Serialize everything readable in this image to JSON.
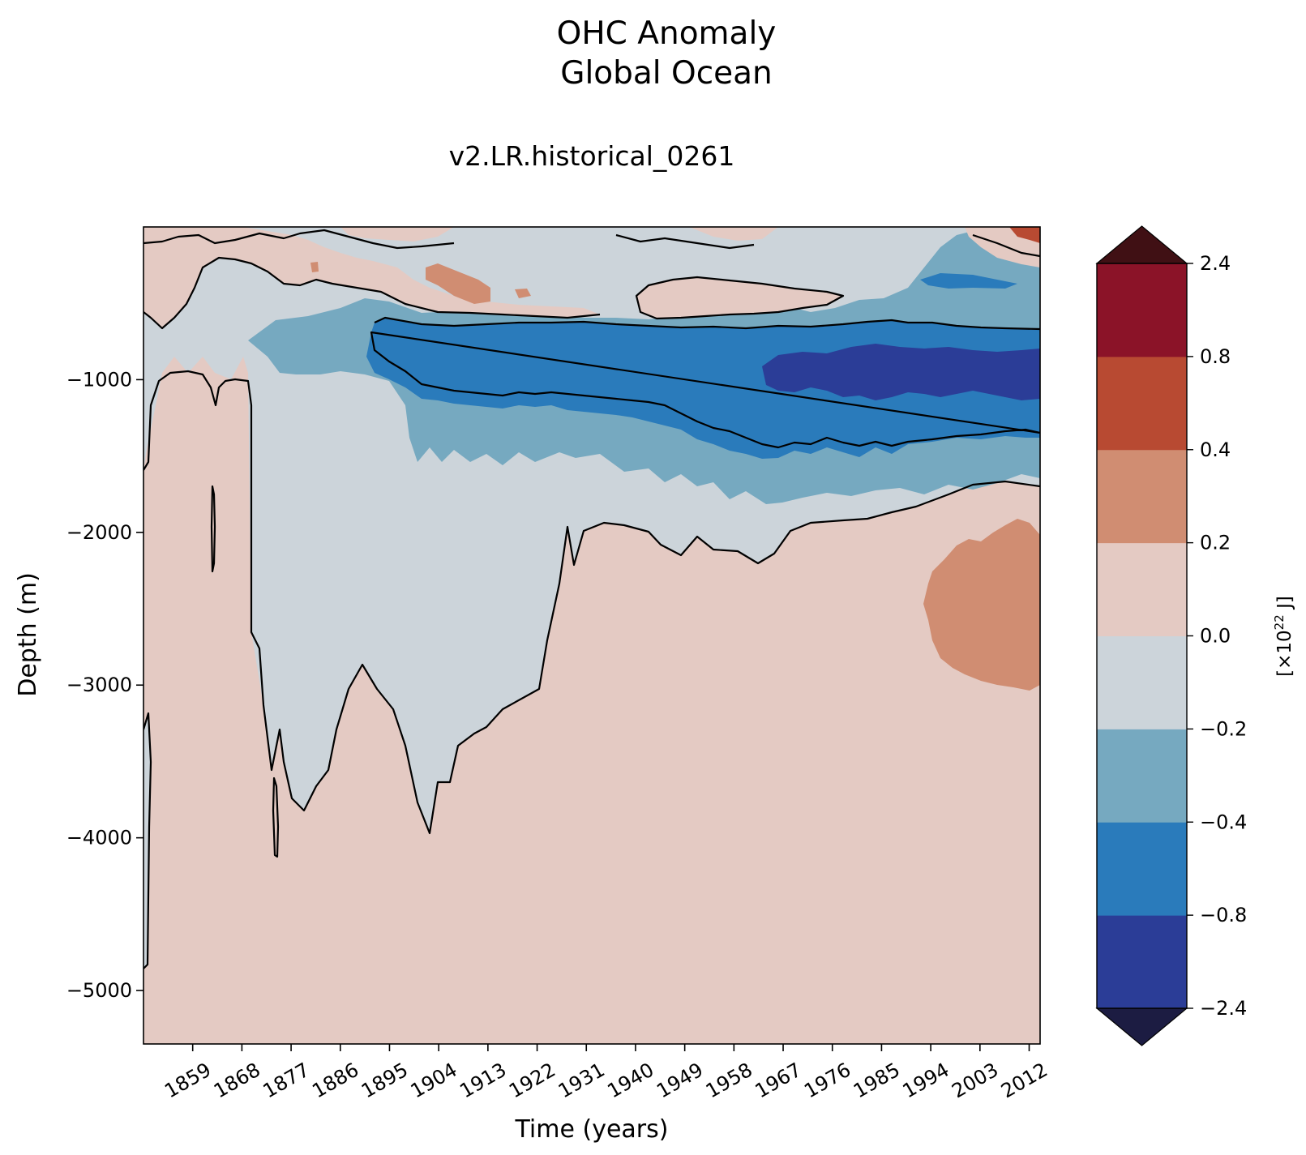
{
  "chart_data": {
    "type": "contourf",
    "title": "OHC Anomaly",
    "subtitle": "Global Ocean",
    "run_name": "v2.LR.historical_0261",
    "xlabel": "Time (years)",
    "ylabel": "Depth (m)",
    "xlim": [
      1850,
      2014
    ],
    "ylim": [
      -5350,
      0
    ],
    "x_ticks": [
      1859,
      1868,
      1877,
      1886,
      1895,
      1904,
      1913,
      1922,
      1931,
      1940,
      1949,
      1958,
      1967,
      1976,
      1985,
      1994,
      2003,
      2012
    ],
    "y_ticks": [
      -1000,
      -2000,
      -3000,
      -4000,
      -5000
    ],
    "y_tick_labels": [
      "−1000",
      "−2000",
      "−3000",
      "−4000",
      "−5000"
    ],
    "colorbar": {
      "label_prefix": "[×10",
      "label_exp": "22",
      "label_suffix": " J]",
      "levels": [
        -2.4,
        -0.8,
        -0.4,
        -0.2,
        0.0,
        0.2,
        0.4,
        0.8,
        2.4
      ],
      "tick_labels": [
        "−2.4",
        "−0.8",
        "−0.4",
        "−0.2",
        "0.0",
        "0.2",
        "0.4",
        "0.8",
        "2.4"
      ],
      "colors": [
        "#2b3d97",
        "#2a7bbb",
        "#76a9c0",
        "#ccd4da",
        "#e4cac3",
        "#d08d72",
        "#b84a32",
        "#8b1328"
      ],
      "extend_min_color": "#1c1c42",
      "extend_max_color": "#401014"
    },
    "regions": [
      {
        "name": "deep positive anomaly",
        "x_range": [
          1850,
          2014
        ],
        "depth_range": [
          -5350,
          -1700
        ],
        "value_range": [
          0.0,
          0.2
        ]
      },
      {
        "name": "early-period negative column",
        "x_range": [
          1869,
          1929
        ],
        "depth_range": [
          -4000,
          -400
        ],
        "value_range": [
          -0.2,
          0.0
        ]
      },
      {
        "name": "mid-depth cooling core",
        "x_range": [
          1892,
          2014
        ],
        "depth_range": [
          -1450,
          -600
        ],
        "value_range": [
          -0.8,
          -0.4
        ]
      },
      {
        "name": "strongest cooling",
        "x_range": [
          1962,
          2014
        ],
        "depth_range": [
          -1200,
          -800
        ],
        "value_range": [
          -2.4,
          -0.8
        ]
      },
      {
        "name": "abyssal warm patch",
        "x_range": [
          1991,
          2014
        ],
        "depth_range": [
          -3000,
          -1950
        ],
        "value_range": [
          0.2,
          0.4
        ]
      },
      {
        "name": "upper-ocean warm patches",
        "x_range": [
          1850,
          1977
        ],
        "depth_range": [
          -600,
          0
        ],
        "value_range": [
          0.0,
          0.4
        ]
      },
      {
        "name": "surface warming recent",
        "x_range": [
          2004,
          2014
        ],
        "depth_range": [
          -150,
          0
        ],
        "value_range": [
          0.4,
          0.8
        ]
      }
    ]
  }
}
